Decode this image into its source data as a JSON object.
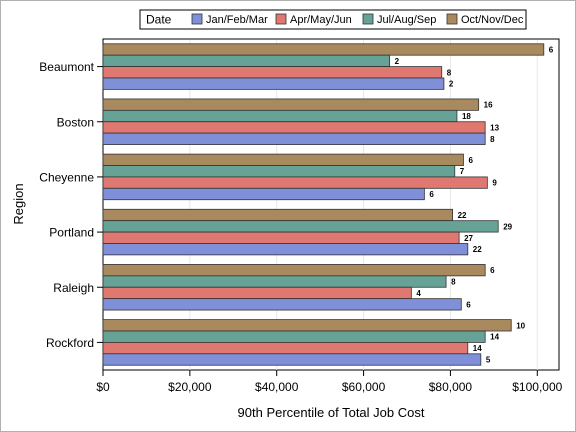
{
  "chart_data": {
    "type": "bar",
    "orientation": "horizontal",
    "title": "",
    "xlabel": "90th Percentile of Total Job Cost",
    "ylabel": "Region",
    "xlim": [
      0,
      105000
    ],
    "x_ticks": [
      0,
      20000,
      40000,
      60000,
      80000,
      100000
    ],
    "x_tick_labels": [
      "$0",
      "$20,000",
      "$40,000",
      "$60,000",
      "$80,000",
      "$100,000"
    ],
    "grid": "vertical",
    "legend_title": "Date",
    "legend_position": "top",
    "categories": [
      "Beaumont",
      "Boston",
      "Cheyenne",
      "Portland",
      "Raleigh",
      "Rockford"
    ],
    "series": [
      {
        "name": "Jan/Feb/Mar",
        "color": "#7f8fd8",
        "values": [
          78500,
          88000,
          74000,
          84000,
          82500,
          87000
        ],
        "labels": [
          "2",
          "8",
          "6",
          "22",
          "6",
          "5"
        ]
      },
      {
        "name": "Apr/May/Jun",
        "color": "#de7870",
        "values": [
          78000,
          88000,
          88500,
          82000,
          71000,
          84000
        ],
        "labels": [
          "8",
          "13",
          "9",
          "27",
          "4",
          "14"
        ]
      },
      {
        "name": "Jul/Aug/Sep",
        "color": "#66a396",
        "values": [
          66000,
          81500,
          81000,
          91000,
          79000,
          88000
        ],
        "labels": [
          "2",
          "18",
          "7",
          "29",
          "8",
          "14"
        ]
      },
      {
        "name": "Oct/Nov/Dec",
        "color": "#a98a5e",
        "values": [
          101500,
          86500,
          83000,
          80500,
          88000,
          94000
        ],
        "labels": [
          "6",
          "16",
          "6",
          "22",
          "6",
          "10"
        ]
      }
    ]
  }
}
